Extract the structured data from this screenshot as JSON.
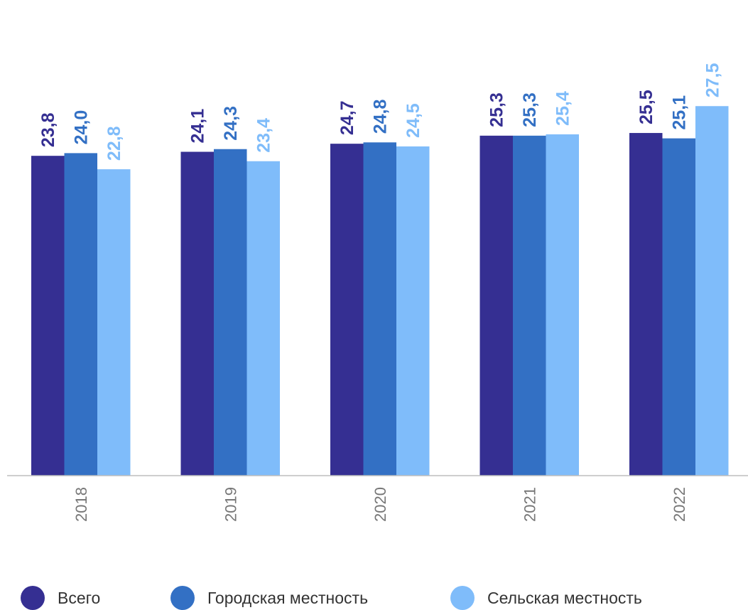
{
  "chart_data": {
    "type": "bar",
    "categories": [
      "2018",
      "2019",
      "2020",
      "2021",
      "2022"
    ],
    "series": [
      {
        "name": "Всего",
        "color": "#352f92",
        "values": [
          23.8,
          24.1,
          24.7,
          25.3,
          25.5
        ],
        "labels": [
          "23,8",
          "24,1",
          "24,7",
          "25,3",
          "25,5"
        ]
      },
      {
        "name": "Городская местность",
        "color": "#3370c4",
        "values": [
          24.0,
          24.3,
          24.8,
          25.3,
          25.1
        ],
        "labels": [
          "24,0",
          "24,3",
          "24,8",
          "25,3",
          "25,1"
        ]
      },
      {
        "name": "Сельская местность",
        "color": "#7fbcfa",
        "values": [
          22.8,
          23.4,
          24.5,
          25.4,
          27.5
        ],
        "labels": [
          "22,8",
          "23,4",
          "24,5",
          "25,4",
          "27,5"
        ]
      }
    ],
    "legend_position": "bottom",
    "grid": false
  }
}
